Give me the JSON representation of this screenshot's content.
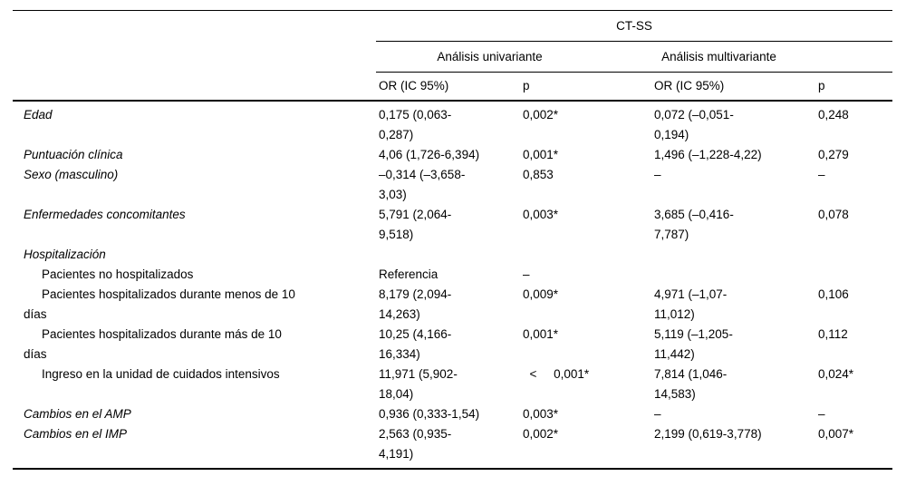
{
  "table": {
    "group_header": "CT-SS",
    "subgroups": [
      "Análisis univariante",
      "Análisis multivariante"
    ],
    "columns": [
      "OR (IC 95%)",
      "p",
      "OR (IC 95%)",
      "p"
    ],
    "colors": {
      "text": "#000000",
      "rule": "#000000",
      "background": "#ffffff"
    },
    "rows": [
      {
        "style": "item",
        "label": "Edad",
        "or1": "0,175 (0,063-\n0,287)",
        "p1": "0,002*",
        "or2": "0,072 (–0,051-\n0,194)",
        "p2": "0,248"
      },
      {
        "style": "item",
        "label": "Puntuación clínica",
        "or1": "4,06 (1,726-6,394)",
        "p1": "0,001*",
        "or2": "1,496 (–1,228-4,22)",
        "p2": "0,279"
      },
      {
        "style": "item",
        "label": "Sexo (masculino)",
        "or1": "–0,314 (–3,658-\n3,03)",
        "p1": "0,853",
        "or2": "–",
        "p2": "–"
      },
      {
        "style": "item",
        "label": "Enfermedades concomitantes",
        "or1": "5,791 (2,064-\n9,518)",
        "p1": "0,003*",
        "or2": "3,685 (–0,416-\n7,787)",
        "p2": "0,078"
      },
      {
        "style": "section",
        "label": "Hospitalización",
        "or1": "",
        "p1": "",
        "or2": "",
        "p2": ""
      },
      {
        "style": "subitem",
        "label": "Pacientes no hospitalizados",
        "or1": "Referencia",
        "p1": "–",
        "or2": "",
        "p2": ""
      },
      {
        "style": "subitem",
        "label": "Pacientes hospitalizados durante menos de 10\ndías",
        "or1": "8,179 (2,094-\n14,263)",
        "p1": "0,009*",
        "or2": "4,971 (–1,07-\n11,012)",
        "p2": "0,106"
      },
      {
        "style": "subitem",
        "label": "Pacientes hospitalizados durante más de 10\ndías",
        "or1": "10,25 (4,166-\n16,334)",
        "p1": "0,001*",
        "or2": "5,119 (–1,205-\n11,442)",
        "p2": "0,112"
      },
      {
        "style": "subitem",
        "label": "Ingreso en la unidad de cuidados intensivos",
        "or1": "11,971 (5,902-\n18,04)",
        "p1": "  <     0,001*",
        "or2": "7,814 (1,046-\n14,583)",
        "p2": "0,024*"
      },
      {
        "style": "item",
        "label": "Cambios en el AMP",
        "or1": "0,936 (0,333-1,54)",
        "p1": "0,003*",
        "or2": "–",
        "p2": "–"
      },
      {
        "style": "item",
        "label": "Cambios en el IMP",
        "or1": "2,563 (0,935-\n4,191)",
        "p1": "0,002*",
        "or2": "2,199 (0,619-3,778)",
        "p2": "0,007*"
      }
    ]
  }
}
